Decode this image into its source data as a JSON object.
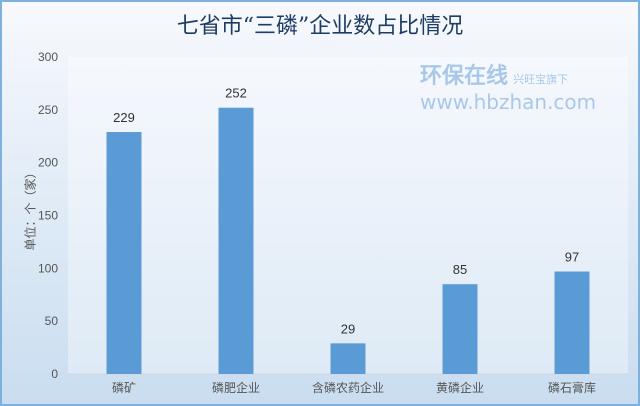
{
  "chart_data": {
    "type": "bar",
    "title": "七省市“三磷”企业数占比情况",
    "ylabel": "单位：个（家）",
    "xlabel": "",
    "categories": [
      "磷矿",
      "磷肥企业",
      "含磷农药企业",
      "黄磷企业",
      "磷石膏库"
    ],
    "values": [
      229,
      252,
      29,
      85,
      97
    ],
    "ylim": [
      0,
      300
    ],
    "yticks": [
      0,
      50,
      100,
      150,
      200,
      250,
      300
    ],
    "grid": false,
    "bar_color": "#5b9bd5"
  },
  "watermark": {
    "brand": "环保在线",
    "url": "www.hbzhan.com",
    "tag": "兴旺宝旗下"
  }
}
